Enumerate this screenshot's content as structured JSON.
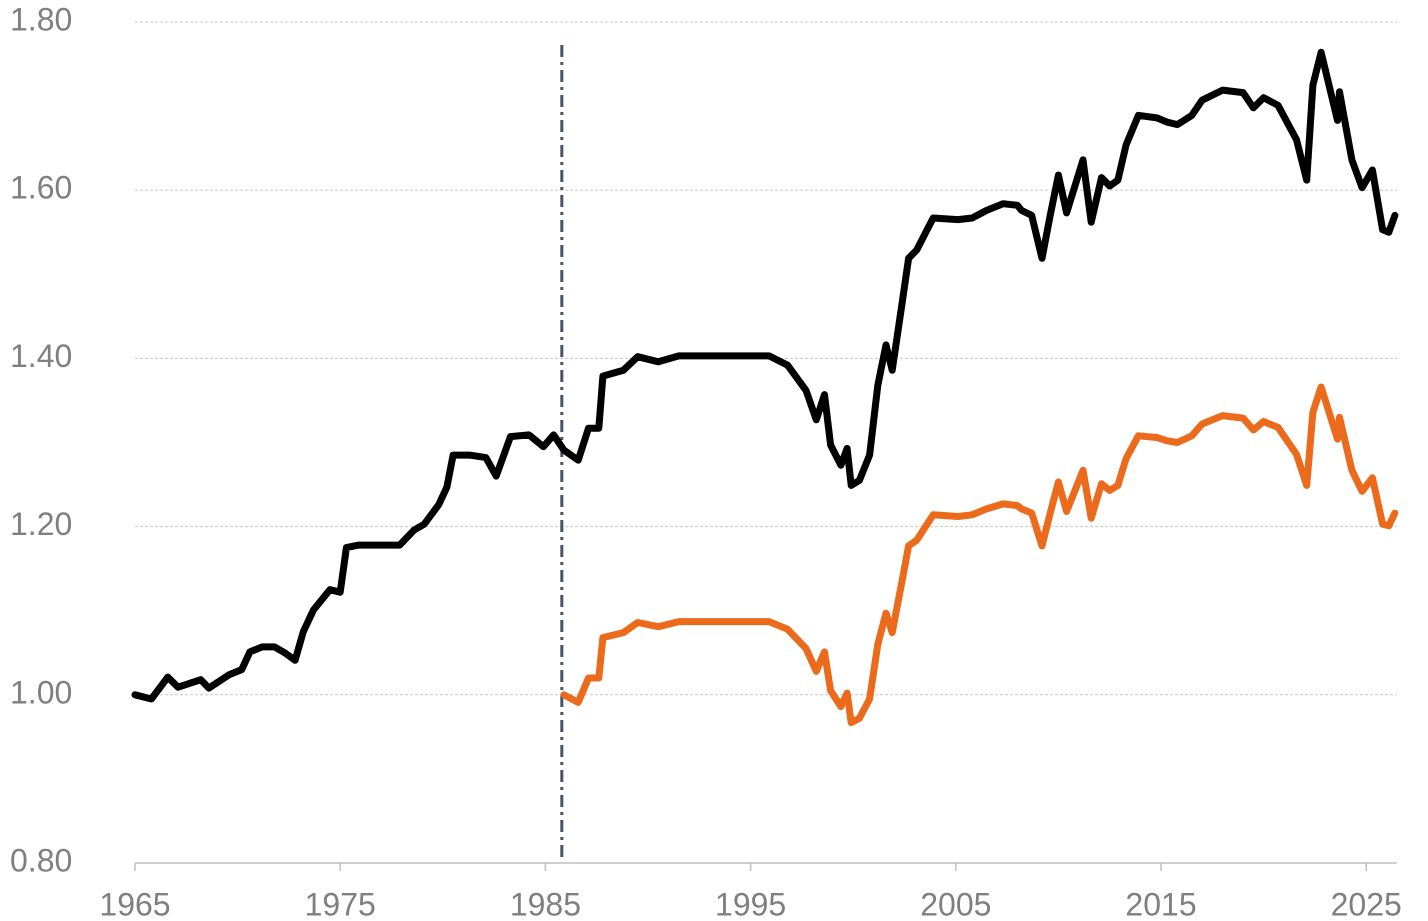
{
  "chart_data": {
    "type": "line",
    "x": [
      1965,
      1965.8,
      1966.6,
      1967.1,
      1968.2,
      1968.6,
      1969.6,
      1970.2,
      1970.6,
      1971.2,
      1971.8,
      1972.3,
      1972.8,
      1973.2,
      1973.7,
      1974.5,
      1975.0,
      1975.3,
      1975.9,
      1976.9,
      1977.9,
      1978.6,
      1979.1,
      1979.8,
      1980.2,
      1980.5,
      1981.3,
      1982.1,
      1982.6,
      1983.3,
      1984.2,
      1984.9,
      1985.4,
      1985.9,
      1986.6,
      1987.1,
      1987.6,
      1987.8,
      1988.8,
      1989.5,
      1990.5,
      1991.5,
      1995.9,
      1996.8,
      1997.7,
      1998.2,
      1998.6,
      1998.9,
      1999.4,
      1999.7,
      1999.9,
      2000.3,
      2000.8,
      2001.2,
      2001.6,
      2001.9,
      2002.4,
      2002.7,
      2003.1,
      2003.6,
      2003.9,
      2005.1,
      2005.8,
      2006.5,
      2007.3,
      2008.0,
      2008.2,
      2008.7,
      2009.2,
      2009.6,
      2010.0,
      2010.4,
      2011.2,
      2011.6,
      2012.1,
      2012.5,
      2012.9,
      2013.3,
      2013.9,
      2014.8,
      2015.3,
      2015.8,
      2016.5,
      2017.0,
      2018.0,
      2019.0,
      2019.5,
      2020.0,
      2020.7,
      2021.6,
      2022.1,
      2022.4,
      2022.8,
      2023.6,
      2023.7,
      2024.3,
      2024.8,
      2025.3,
      2025.8,
      2026.1,
      2026.4
    ],
    "series": [
      {
        "color": "#000000",
        "values": [
          1.0,
          0.995,
          1.021,
          1.009,
          1.018,
          1.008,
          1.024,
          1.03,
          1.051,
          1.057,
          1.057,
          1.05,
          1.041,
          1.075,
          1.101,
          1.125,
          1.122,
          1.175,
          1.178,
          1.178,
          1.178,
          1.196,
          1.203,
          1.226,
          1.247,
          1.285,
          1.285,
          1.282,
          1.26,
          1.307,
          1.309,
          1.295,
          1.309,
          1.291,
          1.279,
          1.317,
          1.317,
          1.379,
          1.386,
          1.402,
          1.396,
          1.403,
          1.403,
          1.392,
          1.362,
          1.327,
          1.357,
          1.297,
          1.273,
          1.293,
          1.249,
          1.255,
          1.285,
          1.368,
          1.416,
          1.386,
          1.469,
          1.519,
          1.529,
          1.553,
          1.567,
          1.565,
          1.567,
          1.576,
          1.584,
          1.582,
          1.576,
          1.57,
          1.519,
          1.57,
          1.618,
          1.573,
          1.636,
          1.562,
          1.615,
          1.605,
          1.612,
          1.654,
          1.689,
          1.686,
          1.681,
          1.678,
          1.689,
          1.707,
          1.719,
          1.716,
          1.698,
          1.71,
          1.701,
          1.66,
          1.612,
          1.725,
          1.764,
          1.683,
          1.717,
          1.636,
          1.603,
          1.624,
          1.553,
          1.55,
          1.57
        ]
      },
      {
        "color": "#ec6a1c",
        "values": [
          null,
          null,
          null,
          null,
          null,
          null,
          null,
          null,
          null,
          null,
          null,
          null,
          null,
          null,
          null,
          null,
          null,
          null,
          null,
          null,
          null,
          null,
          null,
          null,
          null,
          null,
          null,
          null,
          null,
          null,
          null,
          null,
          null,
          1.0,
          0.991,
          1.02,
          1.02,
          1.068,
          1.074,
          1.086,
          1.081,
          1.087,
          1.087,
          1.078,
          1.055,
          1.028,
          1.051,
          1.005,
          0.986,
          1.002,
          0.967,
          0.972,
          0.995,
          1.06,
          1.097,
          1.074,
          1.138,
          1.177,
          1.184,
          1.203,
          1.214,
          1.212,
          1.214,
          1.221,
          1.227,
          1.225,
          1.221,
          1.216,
          1.177,
          1.216,
          1.253,
          1.218,
          1.267,
          1.21,
          1.251,
          1.243,
          1.249,
          1.281,
          1.308,
          1.306,
          1.302,
          1.3,
          1.308,
          1.322,
          1.332,
          1.329,
          1.315,
          1.325,
          1.318,
          1.286,
          1.249,
          1.336,
          1.366,
          1.304,
          1.33,
          1.267,
          1.242,
          1.258,
          1.203,
          1.201,
          1.216
        ]
      }
    ],
    "xlim": [
      1965,
      2026.5
    ],
    "xticks": [
      1965,
      1975,
      1985,
      1995,
      2005,
      2015,
      2025
    ],
    "ylim": [
      0.8,
      1.8
    ],
    "yticks": [
      {
        "value": 0.8,
        "label": "0.80"
      },
      {
        "value": 1.0,
        "label": "1.00"
      },
      {
        "value": 1.2,
        "label": "1.20"
      },
      {
        "value": 1.4,
        "label": "1.40"
      },
      {
        "value": 1.6,
        "label": "1.60"
      },
      {
        "value": 1.8,
        "label": "1.80"
      }
    ],
    "grid": true,
    "vline_x": 1985.8
  }
}
